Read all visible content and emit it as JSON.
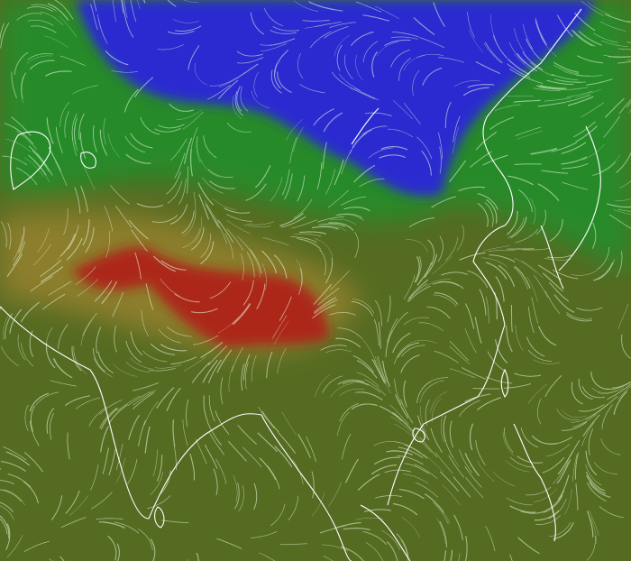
{
  "map": {
    "layer": "wind-overlay",
    "colors": {
      "base": "#556b22",
      "cold": "#2a2ad0",
      "cool": "#1f8f2a",
      "warm": "#b08a30",
      "hot": "#b01c14",
      "coastline": "#ffffff",
      "streamline": "#e8ffe0"
    }
  }
}
